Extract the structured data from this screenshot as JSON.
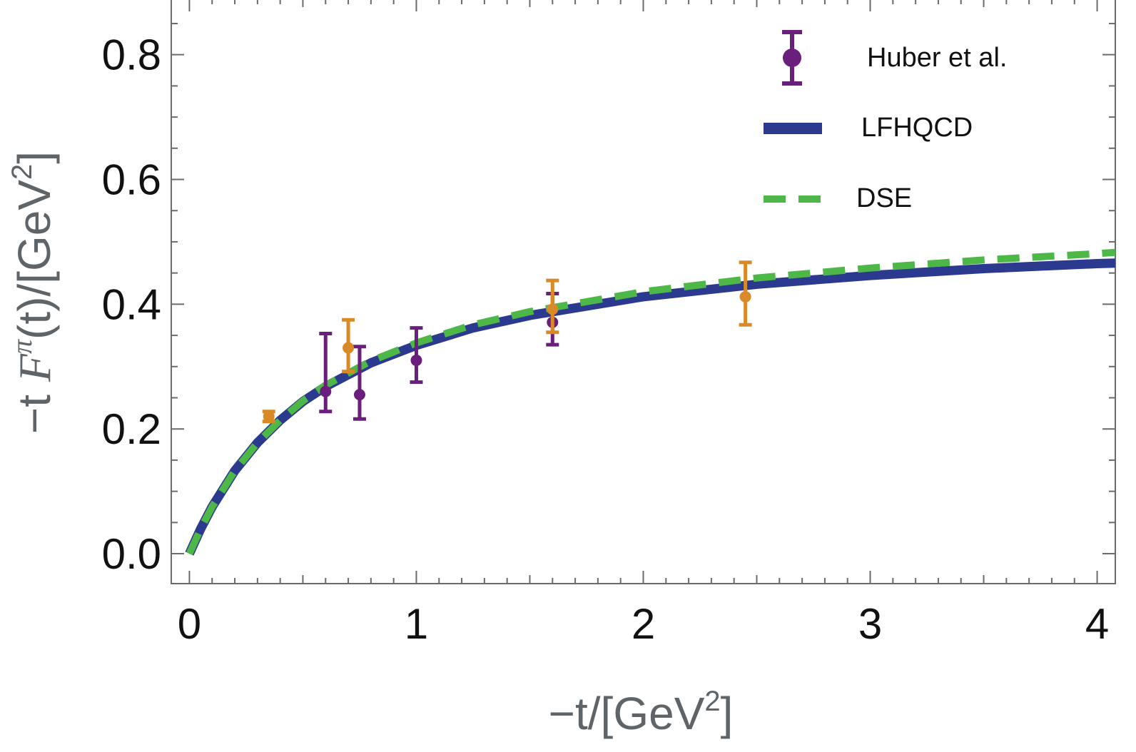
{
  "chart_data": {
    "type": "line",
    "title": "",
    "xlabel": "−t/[GeV²]",
    "xlabel_parts": {
      "main": "−t/[GeV",
      "sup": "2",
      "tail": "]"
    },
    "ylabel": "−t F^π(t)/[GeV²]",
    "ylabel_parts": {
      "pre": "−t ",
      "italic": "F",
      "sup_pi": "π",
      "mid": "(t)/[GeV",
      "sup": "2",
      "tail": "]"
    },
    "xlim": [
      -0.08,
      4.08
    ],
    "ylim": [
      -0.048,
      0.89
    ],
    "x_ticks": [
      0,
      1,
      2,
      3,
      4
    ],
    "x_tick_labels": [
      "0",
      "1",
      "2",
      "3",
      "4"
    ],
    "y_ticks": [
      0.0,
      0.2,
      0.4,
      0.6,
      0.8
    ],
    "y_tick_labels": [
      "0.0",
      "0.2",
      "0.4",
      "0.6",
      "0.8"
    ],
    "grid": false,
    "legend_position": "top-right",
    "series": [
      {
        "name": "Huber et al.",
        "kind": "errorbar",
        "color": "#6b1f7c",
        "points": [
          {
            "x": 0.6,
            "y": 0.26,
            "ylo": 0.228,
            "yhi": 0.353
          },
          {
            "x": 0.75,
            "y": 0.255,
            "ylo": 0.216,
            "yhi": 0.332
          },
          {
            "x": 1.0,
            "y": 0.31,
            "ylo": 0.275,
            "yhi": 0.362
          },
          {
            "x": 1.6,
            "y": 0.371,
            "ylo": 0.335,
            "yhi": 0.417
          }
        ]
      },
      {
        "name": "",
        "kind": "errorbar",
        "color": "#d98a26",
        "points": [
          {
            "x": 0.35,
            "y": 0.22,
            "ylo": 0.212,
            "yhi": 0.228
          },
          {
            "x": 0.7,
            "y": 0.33,
            "ylo": 0.292,
            "yhi": 0.375
          },
          {
            "x": 1.6,
            "y": 0.392,
            "ylo": 0.355,
            "yhi": 0.438
          },
          {
            "x": 2.45,
            "y": 0.412,
            "ylo": 0.367,
            "yhi": 0.467
          }
        ]
      },
      {
        "name": "LFHQCD",
        "kind": "line",
        "style": "solid",
        "color": "#2b3a8f",
        "x": [
          0,
          0.05,
          0.1,
          0.2,
          0.3,
          0.4,
          0.5,
          0.6,
          0.8,
          1.0,
          1.25,
          1.5,
          2.0,
          2.5,
          3.0,
          3.5,
          4.0,
          4.08
        ],
        "values": [
          0,
          0.04,
          0.075,
          0.133,
          0.178,
          0.214,
          0.244,
          0.268,
          0.306,
          0.334,
          0.362,
          0.382,
          0.412,
          0.432,
          0.446,
          0.457,
          0.465,
          0.466
        ]
      },
      {
        "name": "DSE",
        "kind": "line",
        "style": "dashed",
        "color": "#4db748",
        "x": [
          0,
          0.05,
          0.1,
          0.2,
          0.3,
          0.4,
          0.5,
          0.6,
          0.8,
          1.0,
          1.25,
          1.5,
          2.0,
          2.5,
          3.0,
          3.5,
          4.0,
          4.08
        ],
        "values": [
          0,
          0.04,
          0.075,
          0.133,
          0.178,
          0.214,
          0.245,
          0.27,
          0.309,
          0.338,
          0.367,
          0.388,
          0.42,
          0.442,
          0.458,
          0.471,
          0.481,
          0.483
        ]
      }
    ],
    "legend": [
      {
        "label": "Huber et al.",
        "kind": "errorbar",
        "color": "#6b1f7c"
      },
      {
        "label": "LFHQCD",
        "kind": "solid",
        "color": "#2b3a8f"
      },
      {
        "label": "DSE",
        "kind": "dashed",
        "color": "#4db748"
      }
    ]
  }
}
